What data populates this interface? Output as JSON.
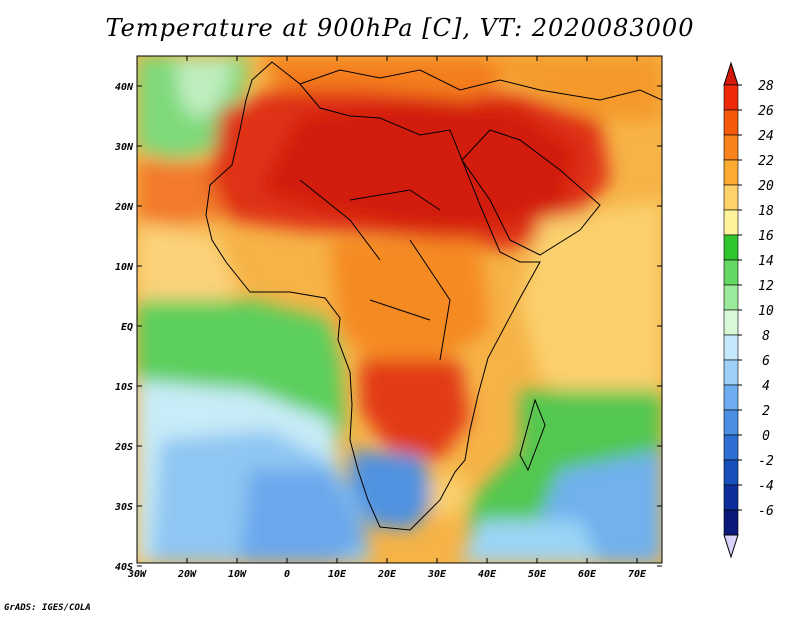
{
  "title": "Temperature at 900hPa [C], VT: 2020083000",
  "credit": "GrADS: IGES/COLA",
  "map": {
    "lon_ticks": [
      "30W",
      "20W",
      "10W",
      "0",
      "10E",
      "20E",
      "30E",
      "40E",
      "50E",
      "60E",
      "70E"
    ],
    "lat_ticks": [
      "40N",
      "30N",
      "20N",
      "10N",
      "EQ",
      "10S",
      "20S",
      "30S",
      "40S"
    ],
    "lon_range": [
      -30,
      75
    ],
    "lat_range": [
      -40,
      45
    ]
  },
  "colorbar": {
    "labels": [
      "28",
      "26",
      "24",
      "22",
      "20",
      "18",
      "16",
      "14",
      "12",
      "10",
      "8",
      "6",
      "4",
      "2",
      "0",
      "-2",
      "-4",
      "-6"
    ],
    "colors": [
      "#ee2a0a",
      "#f55a0a",
      "#f9821a",
      "#fcab32",
      "#fdd26b",
      "#fef29a",
      "#2fc52f",
      "#63d762",
      "#9be99a",
      "#d9f8d8",
      "#c4e8fb",
      "#9ed0f7",
      "#6eaef0",
      "#4b8fe4",
      "#2d6fd2",
      "#1850bb",
      "#0c2f9c",
      "#0b1a78"
    ],
    "top_arrow_color": "#d31a0a",
    "bottom_arrow_color": "#d9d3fb"
  }
}
